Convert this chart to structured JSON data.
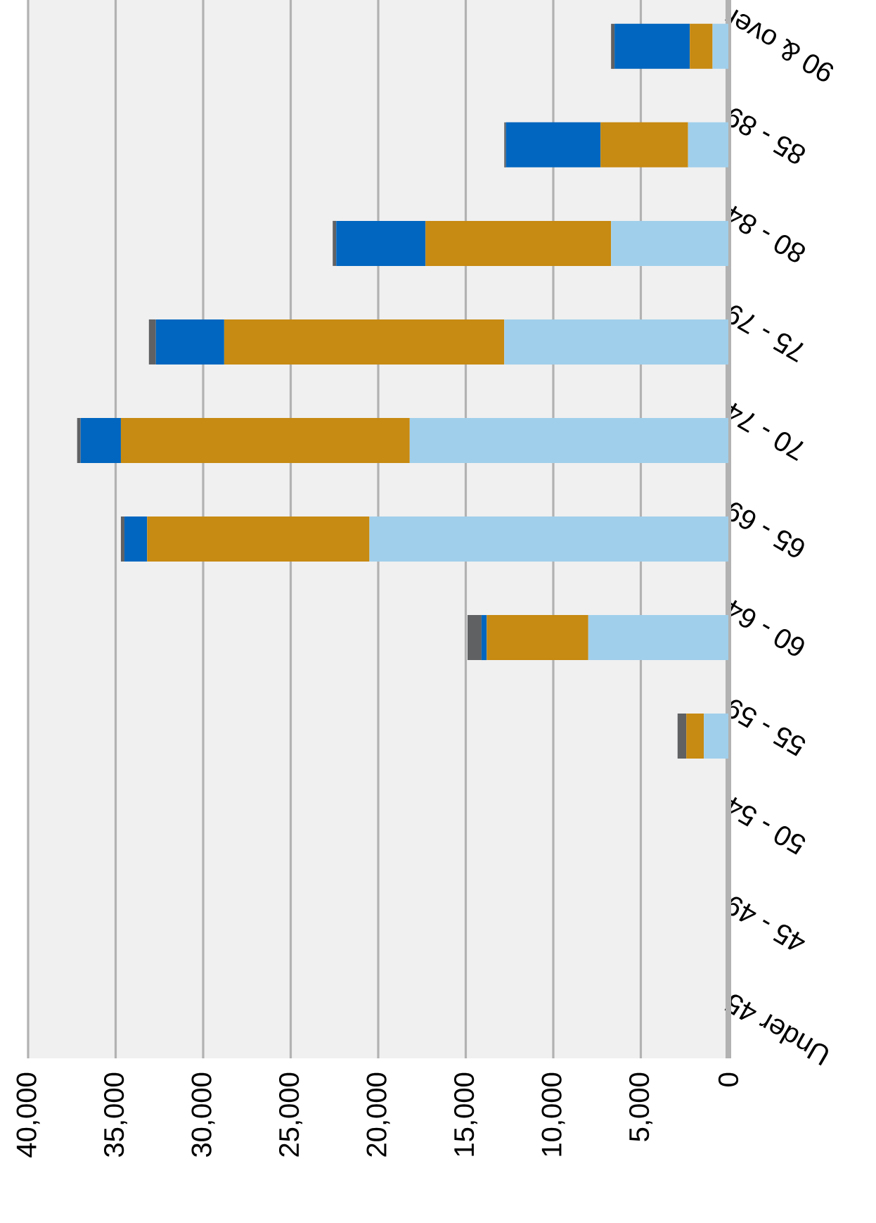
{
  "chart_data": {
    "type": "bar",
    "orientation": "horizontal",
    "stacked": true,
    "grid": "x",
    "categories": [
      "90 & over",
      "85 - 89",
      "80 - 84",
      "75 - 79",
      "70 - 74",
      "65 - 69",
      "60 - 64",
      "55 - 59",
      "50 - 54",
      "45 - 49",
      "Under 45"
    ],
    "series": [
      {
        "color": "#a0cfeb",
        "values": [
          900,
          2300,
          6700,
          12800,
          18200,
          20500,
          8000,
          1400,
          0,
          0,
          0
        ]
      },
      {
        "color": "#c78a12",
        "values": [
          1300,
          5000,
          10600,
          16000,
          16500,
          12700,
          5800,
          1000,
          0,
          0,
          0
        ]
      },
      {
        "color": "#0066bf",
        "values": [
          4300,
          5400,
          5100,
          3900,
          2300,
          1300,
          300,
          0,
          0,
          0,
          0
        ]
      },
      {
        "color": "#5f6163",
        "values": [
          200,
          100,
          200,
          400,
          200,
          200,
          800,
          500,
          0,
          0,
          0
        ]
      }
    ],
    "xlim": [
      40000,
      0
    ],
    "xticks": [
      {
        "value": 40000,
        "label": "40,000"
      },
      {
        "value": 35000,
        "label": "35,000"
      },
      {
        "value": 30000,
        "label": "30,000"
      },
      {
        "value": 25000,
        "label": "25,000"
      },
      {
        "value": 20000,
        "label": "20,000"
      },
      {
        "value": 15000,
        "label": "15,000"
      },
      {
        "value": 10000,
        "label": "10,000"
      },
      {
        "value": 5000,
        "label": "5,000"
      },
      {
        "value": 0,
        "label": "0"
      }
    ]
  }
}
